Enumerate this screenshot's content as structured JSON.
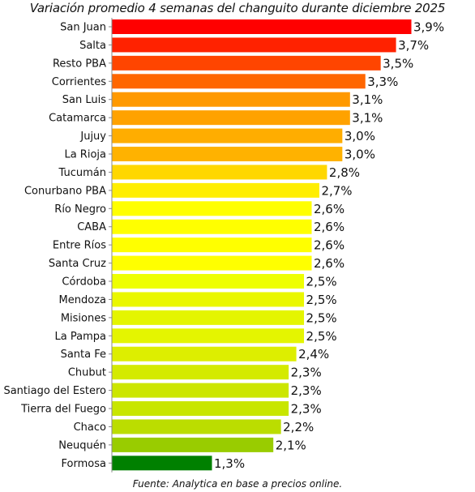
{
  "chart_data": {
    "type": "bar",
    "orientation": "horizontal",
    "title": "Variación promedio 4 semanas del changuito durante diciembre 2025",
    "source": "Fuente: Analytica en base a precios online.",
    "categories": [
      "San Juan",
      "Salta",
      "Resto PBA",
      "Corrientes",
      "San Luis",
      "Catamarca",
      "Jujuy",
      "La Rioja",
      "Tucumán",
      "Conurbano PBA",
      "Río Negro",
      "CABA",
      "Entre Ríos",
      "Santa Cruz",
      "Córdoba",
      "Mendoza",
      "Misiones",
      "La Pampa",
      "Santa Fe",
      "Chubut",
      "Santiago del Estero",
      "Tierra del Fuego",
      "Chaco",
      "Neuquén",
      "Formosa"
    ],
    "values": [
      3.9,
      3.7,
      3.5,
      3.3,
      3.1,
      3.1,
      3.0,
      3.0,
      2.8,
      2.7,
      2.6,
      2.6,
      2.6,
      2.6,
      2.5,
      2.5,
      2.5,
      2.5,
      2.4,
      2.3,
      2.3,
      2.3,
      2.2,
      2.1,
      1.3
    ],
    "value_labels": [
      "3,9%",
      "3,7%",
      "3,5%",
      "3,3%",
      "3,1%",
      "3,1%",
      "3,0%",
      "3,0%",
      "2,8%",
      "2,7%",
      "2,6%",
      "2,6%",
      "2,6%",
      "2,6%",
      "2,5%",
      "2,5%",
      "2,5%",
      "2,5%",
      "2,4%",
      "2,3%",
      "2,3%",
      "2,3%",
      "2,2%",
      "2,1%",
      "1,3%"
    ],
    "colors": [
      "#ff0000",
      "#ff2200",
      "#ff4500",
      "#ff6600",
      "#ff9900",
      "#ffa200",
      "#ffad00",
      "#ffb200",
      "#ffd700",
      "#ffee00",
      "#ffff00",
      "#ffff00",
      "#ffff00",
      "#ffff00",
      "#eeff00",
      "#eaf700",
      "#e4f500",
      "#e4f500",
      "#ddee00",
      "#d4ea00",
      "#cce600",
      "#c8e600",
      "#bbdd00",
      "#99cc00",
      "#008000"
    ],
    "xlim": [
      0,
      3.9
    ],
    "grid": false,
    "legend": "none"
  }
}
